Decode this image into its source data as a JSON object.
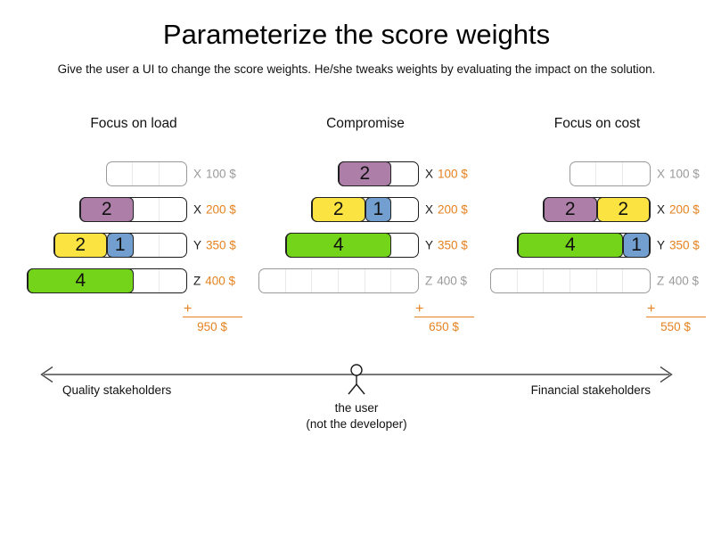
{
  "title": "Parameterize the score weights",
  "subtitle": "Give the user a UI to change the score weights. He/she tweaks weights by evaluating the impact on the solution.",
  "sum_symbol": "+",
  "colors": {
    "plum": "#ad7fa8",
    "butter": "#fbe342",
    "sky": "#729fcf",
    "chameleon": "#74d41a",
    "orange": "#e5821f",
    "inactive": "#9a9a9a"
  },
  "scenarios": [
    {
      "title": "Focus on load",
      "total": "950 $",
      "rows": [
        {
          "cells": 3,
          "dimension": "X",
          "price": "100 $",
          "active": false,
          "blocks": []
        },
        {
          "cells": 4,
          "dimension": "X",
          "price": "200 $",
          "active": true,
          "blocks": [
            {
              "value": "2",
              "color": "plum",
              "span": 2
            }
          ]
        },
        {
          "cells": 5,
          "dimension": "Y",
          "price": "350 $",
          "active": true,
          "blocks": [
            {
              "value": "2",
              "color": "butter",
              "span": 2
            },
            {
              "value": "1",
              "color": "sky",
              "span": 1
            }
          ]
        },
        {
          "cells": 6,
          "dimension": "Z",
          "price": "400 $",
          "active": true,
          "blocks": [
            {
              "value": "4",
              "color": "chameleon",
              "span": 4
            }
          ]
        }
      ]
    },
    {
      "title": "Compromise",
      "total": "650 $",
      "rows": [
        {
          "cells": 3,
          "dimension": "X",
          "price": "100 $",
          "active": true,
          "blocks": [
            {
              "value": "2",
              "color": "plum",
              "span": 2
            }
          ]
        },
        {
          "cells": 4,
          "dimension": "X",
          "price": "200 $",
          "active": true,
          "blocks": [
            {
              "value": "2",
              "color": "butter",
              "span": 2
            },
            {
              "value": "1",
              "color": "sky",
              "span": 1
            }
          ]
        },
        {
          "cells": 5,
          "dimension": "Y",
          "price": "350 $",
          "active": true,
          "blocks": [
            {
              "value": "4",
              "color": "chameleon",
              "span": 4
            }
          ]
        },
        {
          "cells": 6,
          "dimension": "Z",
          "price": "400 $",
          "active": false,
          "blocks": []
        }
      ]
    },
    {
      "title": "Focus on cost",
      "total": "550 $",
      "rows": [
        {
          "cells": 3,
          "dimension": "X",
          "price": "100 $",
          "active": false,
          "blocks": []
        },
        {
          "cells": 4,
          "dimension": "X",
          "price": "200 $",
          "active": true,
          "blocks": [
            {
              "value": "2",
              "color": "plum",
              "span": 2
            },
            {
              "value": "2",
              "color": "butter",
              "span": 2
            }
          ]
        },
        {
          "cells": 5,
          "dimension": "Y",
          "price": "350 $",
          "active": true,
          "blocks": [
            {
              "value": "4",
              "color": "chameleon",
              "span": 4
            },
            {
              "value": "1",
              "color": "sky",
              "span": 1
            }
          ]
        },
        {
          "cells": 6,
          "dimension": "Z",
          "price": "400 $",
          "active": false,
          "blocks": []
        }
      ]
    }
  ],
  "axis": {
    "left_label": "Quality stakeholders",
    "right_label": "Financial stakeholders",
    "center_label_line1": "the user",
    "center_label_line2": "(not the developer)"
  }
}
